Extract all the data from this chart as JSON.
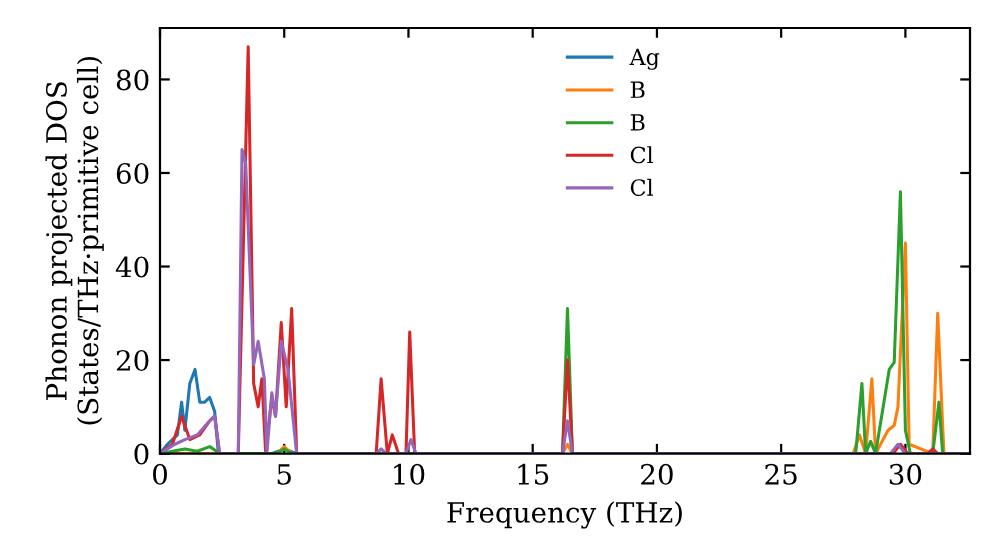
{
  "chart_data": {
    "type": "line",
    "xlabel": "Frequency (THz)",
    "ylabel": "Phonon projected DOS\n(States/THz·primitive cell)",
    "xlim": [
      0,
      32.6
    ],
    "ylim": [
      0,
      91
    ],
    "xticks": [
      0,
      5,
      10,
      15,
      20,
      25,
      30
    ],
    "yticks": [
      0,
      20,
      40,
      60,
      80
    ],
    "grid": false,
    "legend": "top",
    "line_style": "solid",
    "marker": "none",
    "series": [
      {
        "name": "Ag",
        "color": "#1f77b4",
        "x": [
          0,
          0.3,
          0.5,
          0.7,
          0.87,
          1.0,
          1.2,
          1.41,
          1.6,
          1.8,
          2.0,
          2.2,
          2.35,
          4.5,
          5.0,
          5.5
        ],
        "values": [
          0,
          2,
          3,
          4,
          11,
          5,
          15,
          18,
          11,
          11,
          12,
          9,
          0,
          0,
          1,
          0
        ]
      },
      {
        "name": "B",
        "color": "#ff7f0e",
        "x": [
          0,
          4.7,
          5.0,
          5.3,
          16.2,
          16.4,
          16.6,
          27.9,
          28.15,
          28.4,
          28.65,
          28.8,
          29.3,
          29.55,
          29.7,
          30.0,
          30.15,
          31.1,
          31.3,
          31.55,
          32.6
        ],
        "values": [
          0,
          0,
          1.5,
          0,
          0,
          2,
          0,
          0,
          4,
          0,
          16,
          0,
          5,
          6,
          10,
          45,
          2,
          0,
          30,
          0,
          0
        ]
      },
      {
        "name": "B",
        "color": "#2ca02c",
        "x": [
          0,
          0.5,
          1.0,
          1.5,
          2.0,
          2.4,
          4.7,
          5.0,
          5.3,
          16.2,
          16.4,
          16.6,
          28.0,
          28.25,
          28.4,
          28.6,
          28.8,
          29.35,
          29.55,
          29.8,
          30.0,
          30.2,
          31.1,
          31.35,
          31.5,
          32.6
        ],
        "values": [
          0,
          0.5,
          1,
          0.5,
          1.5,
          0,
          0,
          1,
          0,
          0,
          31,
          0,
          0,
          15,
          0,
          2.6,
          0,
          18,
          19.5,
          56,
          5,
          0,
          0,
          11,
          0,
          0
        ]
      },
      {
        "name": "Cl",
        "color": "#d62728",
        "x": [
          0,
          0.5,
          0.87,
          1.2,
          1.6,
          2.0,
          2.2,
          2.4,
          3.15,
          3.55,
          3.77,
          3.95,
          4.1,
          4.25,
          4.5,
          4.65,
          4.88,
          5.08,
          5.3,
          5.5,
          8.7,
          8.9,
          9.15,
          9.35,
          9.6,
          9.9,
          10.05,
          10.25,
          16.2,
          16.4,
          16.6,
          29.5,
          29.8,
          30.1,
          30.9,
          31.1,
          31.3,
          32.6
        ],
        "values": [
          0,
          2,
          8,
          3,
          4,
          7,
          8,
          0,
          0,
          87,
          15,
          10,
          16,
          0.5,
          12,
          8,
          28,
          10,
          31,
          0,
          0,
          16,
          0,
          4,
          0,
          0,
          26,
          0,
          0,
          20,
          0,
          0,
          2,
          0,
          0,
          1,
          0,
          0
        ]
      },
      {
        "name": "Cl",
        "color": "#9467bd",
        "x": [
          0,
          0.6,
          1.0,
          1.5,
          2.0,
          2.2,
          2.4,
          3.15,
          3.3,
          3.45,
          3.77,
          3.95,
          4.2,
          4.3,
          4.5,
          4.65,
          4.88,
          5.15,
          5.5,
          8.7,
          8.9,
          9.1,
          9.9,
          10.1,
          10.3,
          16.2,
          16.4,
          16.6,
          29.4,
          29.7,
          30.0,
          32.6
        ],
        "values": [
          0,
          2,
          3,
          4,
          7,
          8,
          0,
          0,
          65,
          62,
          19,
          24,
          16,
          0,
          13,
          8,
          24,
          18,
          0,
          0,
          1,
          0,
          0,
          3,
          0,
          0,
          7,
          0,
          0,
          2,
          0,
          0
        ]
      }
    ]
  }
}
